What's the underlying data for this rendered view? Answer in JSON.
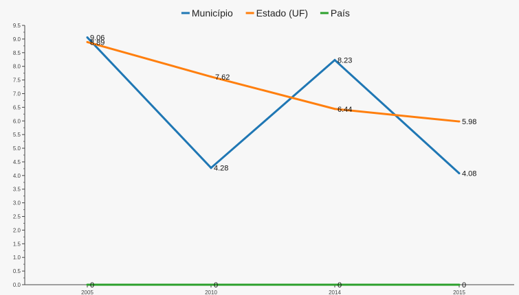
{
  "chart_data": {
    "type": "line",
    "x": [
      "2005",
      "2010",
      "2014",
      "2015"
    ],
    "series": [
      {
        "name": "Município",
        "color": "#1f77b4",
        "values": [
          9.06,
          4.28,
          8.23,
          4.08
        ],
        "labels": [
          "9.06",
          "4.28",
          "8.23",
          "4.08"
        ]
      },
      {
        "name": "Estado (UF)",
        "color": "#ff7f0e",
        "values": [
          8.89,
          7.62,
          6.44,
          5.98
        ],
        "labels": [
          "8.89",
          "7.62",
          "6.44",
          "5.98"
        ]
      },
      {
        "name": "País",
        "color": "#2ca02c",
        "values": [
          0,
          0,
          0,
          0
        ],
        "labels": [
          "0",
          "0",
          "0",
          "0"
        ]
      }
    ],
    "ylim": [
      0,
      9.5
    ],
    "yticks": [
      "0.0",
      "0.5",
      "1.0",
      "1.5",
      "2.0",
      "2.5",
      "3.0",
      "3.5",
      "4.0",
      "4.5",
      "5.0",
      "5.5",
      "6.0",
      "6.5",
      "7.0",
      "7.5",
      "8.0",
      "8.5",
      "9.0",
      "9.5"
    ],
    "legend_position": "top-center",
    "grid": false,
    "title": "",
    "xlabel": "",
    "ylabel": ""
  }
}
